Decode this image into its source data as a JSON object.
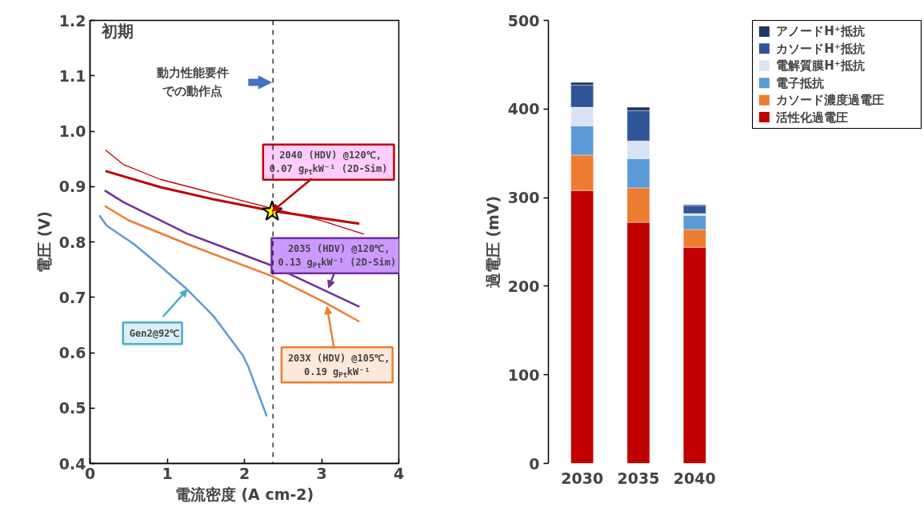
{
  "chart_data": [
    {
      "type": "line",
      "xlabel": "電流密度 (A cm-2)",
      "ylabel": "電圧 (V)",
      "xlim": [
        0,
        4
      ],
      "ylim": [
        0.4,
        1.2
      ],
      "xticks": [
        0,
        1,
        2,
        3,
        4
      ],
      "yticks": [
        0.4,
        0.5,
        0.6,
        0.7,
        0.8,
        0.9,
        {
          "value": 1,
          "label": "1.0"
        },
        1.1,
        1.2
      ],
      "grid": false,
      "series": [
        {
          "color": "#c00000",
          "x": [
            0.2,
            0.43,
            0.91,
            1.6,
            2.29,
            2.98,
            3.55
          ],
          "values": [
            0.966,
            0.94,
            0.913,
            0.888,
            0.863,
            0.839,
            0.814
          ]
        },
        {
          "color": "#c00000",
          "x": [
            0.2,
            0.91,
            1.6,
            2.36,
            3.49
          ],
          "values": [
            0.928,
            0.899,
            0.877,
            0.856,
            0.833
          ]
        },
        {
          "color": "#7030a0",
          "x": [
            0.19,
            0.43,
            1.26,
            2.36,
            3.49
          ],
          "values": [
            0.893,
            0.872,
            0.815,
            0.757,
            0.683
          ]
        },
        {
          "color": "#ed7d31",
          "x": [
            0.19,
            0.5,
            1.26,
            2.36,
            3.05,
            3.49
          ],
          "values": [
            0.865,
            0.839,
            0.796,
            0.738,
            0.69,
            0.656
          ]
        },
        {
          "color": "#5b9bd5",
          "x": [
            0.12,
            0.22,
            0.57,
            0.88,
            1.26,
            1.6,
            1.98,
            2.05,
            2.29
          ],
          "values": [
            0.848,
            0.829,
            0.796,
            0.76,
            0.714,
            0.666,
            0.595,
            0.575,
            0.485
          ]
        },
        {
          "type": "scatter",
          "marker": "star",
          "color": "#ffff00",
          "x": [
            2.36
          ],
          "values": [
            0.855
          ]
        }
      ],
      "ref_lines": [
        {
          "axis": "x",
          "value": 2.37,
          "color": "#000000",
          "line_style": "dashed"
        }
      ],
      "annotations": [
        "初期",
        "動力性能要件",
        "での動作点",
        {
          "text": "2040 (HDV) @120℃,\n0.07 g$_{Pt}$kW⁻¹ (2D-Sim)",
          "x": 2.36,
          "y": 0.855
        },
        {
          "text": "2035 (HDV) @120℃,\n0.13 g$_{Pt}$kW⁻¹ (2D-Sim)",
          "x": 3.09,
          "y": 0.717
        },
        {
          "text": "Gen2@92℃",
          "x": 1.26,
          "y": 0.714
        },
        {
          "text": "203X (HDV) @105℃,\n0.19 g$_{Pt}$kW⁻¹",
          "x": 3.07,
          "y": 0.683
        }
      ]
    },
    {
      "type": "bar",
      "stacked": true,
      "ylabel": "過電圧 (mV)",
      "categories": [
        "2030",
        "2035",
        "2040"
      ],
      "ylim": [
        0,
        500
      ],
      "yticks": [
        0,
        100,
        200,
        300,
        400,
        500
      ],
      "grid": false,
      "legend": "right",
      "series": [
        {
          "name": "活性化過電圧",
          "color": "#c00000",
          "values": [
            308,
            272,
            244
          ]
        },
        {
          "name": "カソード濃度過電圧",
          "color": "#ed7d31",
          "values": [
            40,
            39,
            20
          ]
        },
        {
          "name": "電子抵抗",
          "color": "#5b9bd5",
          "values": [
            33,
            33,
            16
          ]
        },
        {
          "name": "電解質膜H⁺抵抗",
          "color": "#dae3f3",
          "values": [
            21,
            20,
            2
          ]
        },
        {
          "name": "カソードH⁺抵抗",
          "color": "#2f5597",
          "values": [
            25,
            34,
            9
          ]
        },
        {
          "name": "アノードH⁺抵抗",
          "color": "#1f3864",
          "values": [
            3,
            4,
            1
          ]
        }
      ]
    }
  ]
}
